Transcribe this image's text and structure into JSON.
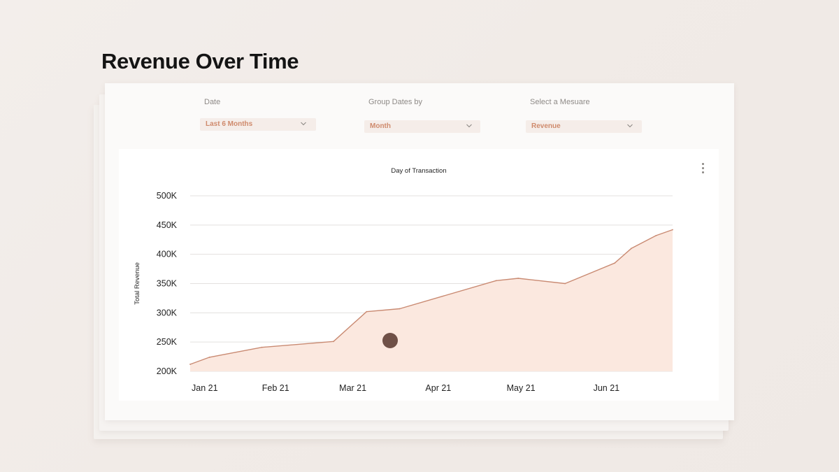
{
  "page": {
    "title": "Revenue Over Time"
  },
  "filters": {
    "date": {
      "label": "Date",
      "value": "Last 6 Months"
    },
    "group": {
      "label": "Group Dates by",
      "value": "Month"
    },
    "measure": {
      "label": "Select a Mesuare",
      "value": "Revenue"
    }
  },
  "icons": {
    "dropdown": "chevron-down-icon",
    "menu": "more-vertical-icon"
  },
  "colors": {
    "accent": "#cf8a6c",
    "line": "#c98a72",
    "area": "#fbe8df",
    "cursor": "#6f5047"
  },
  "chart_data": {
    "type": "area",
    "title": "Day of Transaction",
    "ylabel": "Total Revenue",
    "xlabel": "",
    "ylim": [
      200000,
      500000
    ],
    "yticks": [
      500000,
      450000,
      400000,
      350000,
      300000,
      250000,
      200000
    ],
    "ytick_labels": [
      "500K",
      "450K",
      "400K",
      "350K",
      "300K",
      "250K",
      "200K"
    ],
    "xlim": [
      "2021-01-01",
      "2021-06-25"
    ],
    "xticks": [
      "2021-01-01",
      "2021-02-01",
      "2021-03-01",
      "2021-04-01",
      "2021-05-01",
      "2021-06-01"
    ],
    "xtick_labels": [
      "Jan 21",
      "Feb 21",
      "Mar 21",
      "Apr 21",
      "May 21",
      "Jun 21"
    ],
    "grid": true,
    "legend": "none",
    "series": [
      {
        "x": [
          "2021-01-01",
          "2021-01-08",
          "2021-01-27",
          "2021-02-22",
          "2021-03-06",
          "2021-03-18",
          "2021-04-22",
          "2021-04-30",
          "2021-05-17",
          "2021-06-04",
          "2021-06-10",
          "2021-06-19",
          "2021-06-25"
        ],
        "y": [
          212000,
          224000,
          241000,
          251000,
          302000,
          307000,
          355000,
          359000,
          350000,
          385000,
          410000,
          432000,
          442000
        ]
      }
    ]
  }
}
